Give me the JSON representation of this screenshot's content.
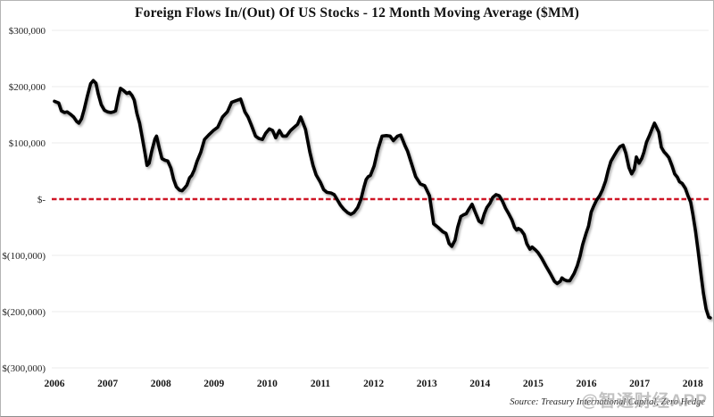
{
  "source_note": "Source: Treasury International Capital, Zero Hedge",
  "watermark": "@智通财经APP",
  "colors": {
    "line": "#000000",
    "zero_line": "#cf1626",
    "gridline": "#ebebeb",
    "text": "#161616"
  },
  "chart_data": {
    "type": "line",
    "title": "Foreign Flows In/(Out) Of US Stocks  - 12 Month Moving Average ($MM)",
    "xlabel": "",
    "ylabel": "",
    "ylim": [
      -300000,
      300000
    ],
    "xlim": [
      2006,
      2018.4
    ],
    "grid": "horizontal",
    "legend": "none",
    "y_ticks": [
      {
        "value": 300000,
        "label": "$300,000"
      },
      {
        "value": 200000,
        "label": "$200,000"
      },
      {
        "value": 100000,
        "label": "$100,000"
      },
      {
        "value": 0,
        "label": "$-"
      },
      {
        "value": -100000,
        "label": "$(100,000)"
      },
      {
        "value": -200000,
        "label": "$(200,000)"
      },
      {
        "value": -300000,
        "label": "$(300,000)"
      }
    ],
    "x_ticks": [
      2006,
      2007,
      2008,
      2009,
      2010,
      2011,
      2012,
      2013,
      2014,
      2015,
      2016,
      2017,
      2018
    ],
    "zero_line": {
      "value": 0,
      "style": "dashed",
      "color": "#cf1626"
    },
    "series": [
      {
        "name": "Foreign flows into/(out of) US stocks, 12-month moving average ($MM)",
        "color": "#000000",
        "points": [
          [
            2006.0,
            174000
          ],
          [
            2006.08,
            171000
          ],
          [
            2006.13,
            157000
          ],
          [
            2006.19,
            154000
          ],
          [
            2006.24,
            155000
          ],
          [
            2006.3,
            151000
          ],
          [
            2006.36,
            146000
          ],
          [
            2006.42,
            138000
          ],
          [
            2006.46,
            135000
          ],
          [
            2006.51,
            143000
          ],
          [
            2006.56,
            160000
          ],
          [
            2006.62,
            184000
          ],
          [
            2006.68,
            205000
          ],
          [
            2006.73,
            211000
          ],
          [
            2006.78,
            206000
          ],
          [
            2006.82,
            188000
          ],
          [
            2006.88,
            168000
          ],
          [
            2006.94,
            158000
          ],
          [
            2007.0,
            155000
          ],
          [
            2007.06,
            154000
          ],
          [
            2007.11,
            155000
          ],
          [
            2007.15,
            157000
          ],
          [
            2007.2,
            181000
          ],
          [
            2007.24,
            197000
          ],
          [
            2007.3,
            193000
          ],
          [
            2007.36,
            188000
          ],
          [
            2007.41,
            190000
          ],
          [
            2007.46,
            184000
          ],
          [
            2007.5,
            176000
          ],
          [
            2007.55,
            152000
          ],
          [
            2007.6,
            135000
          ],
          [
            2007.65,
            110000
          ],
          [
            2007.7,
            83000
          ],
          [
            2007.74,
            60000
          ],
          [
            2007.78,
            64000
          ],
          [
            2007.83,
            86000
          ],
          [
            2007.89,
            107000
          ],
          [
            2007.92,
            112000
          ],
          [
            2007.97,
            91000
          ],
          [
            2008.02,
            72000
          ],
          [
            2008.08,
            69000
          ],
          [
            2008.13,
            68000
          ],
          [
            2008.19,
            55000
          ],
          [
            2008.24,
            35000
          ],
          [
            2008.29,
            22000
          ],
          [
            2008.35,
            16000
          ],
          [
            2008.4,
            15000
          ],
          [
            2008.45,
            20000
          ],
          [
            2008.49,
            25000
          ],
          [
            2008.54,
            38000
          ],
          [
            2008.58,
            42000
          ],
          [
            2008.63,
            52000
          ],
          [
            2008.68,
            67000
          ],
          [
            2008.75,
            83000
          ],
          [
            2008.82,
            106000
          ],
          [
            2008.9,
            114000
          ],
          [
            2008.99,
            122000
          ],
          [
            2009.07,
            128000
          ],
          [
            2009.16,
            146000
          ],
          [
            2009.25,
            155000
          ],
          [
            2009.33,
            172000
          ],
          [
            2009.41,
            175000
          ],
          [
            2009.5,
            178000
          ],
          [
            2009.58,
            155000
          ],
          [
            2009.64,
            146000
          ],
          [
            2009.7,
            132000
          ],
          [
            2009.78,
            112000
          ],
          [
            2009.84,
            108000
          ],
          [
            2009.91,
            106000
          ],
          [
            2009.97,
            117000
          ],
          [
            2010.04,
            125000
          ],
          [
            2010.1,
            122000
          ],
          [
            2010.16,
            109000
          ],
          [
            2010.23,
            122000
          ],
          [
            2010.29,
            112000
          ],
          [
            2010.36,
            112000
          ],
          [
            2010.44,
            122000
          ],
          [
            2010.51,
            128000
          ],
          [
            2010.57,
            133000
          ],
          [
            2010.63,
            146000
          ],
          [
            2010.72,
            124000
          ],
          [
            2010.8,
            84000
          ],
          [
            2010.86,
            60000
          ],
          [
            2010.92,
            43000
          ],
          [
            2011.0,
            30000
          ],
          [
            2011.06,
            17000
          ],
          [
            2011.12,
            12000
          ],
          [
            2011.2,
            11000
          ],
          [
            2011.26,
            8000
          ],
          [
            2011.31,
            0
          ],
          [
            2011.38,
            -11000
          ],
          [
            2011.44,
            -18000
          ],
          [
            2011.51,
            -24000
          ],
          [
            2011.57,
            -27000
          ],
          [
            2011.63,
            -24000
          ],
          [
            2011.7,
            -15000
          ],
          [
            2011.76,
            -1000
          ],
          [
            2011.82,
            22000
          ],
          [
            2011.86,
            35000
          ],
          [
            2011.9,
            40000
          ],
          [
            2011.94,
            42000
          ],
          [
            2012.01,
            59000
          ],
          [
            2012.08,
            88000
          ],
          [
            2012.16,
            112000
          ],
          [
            2012.24,
            113000
          ],
          [
            2012.31,
            112000
          ],
          [
            2012.37,
            104000
          ],
          [
            2012.45,
            112000
          ],
          [
            2012.51,
            114000
          ],
          [
            2012.59,
            95000
          ],
          [
            2012.64,
            85000
          ],
          [
            2012.71,
            64000
          ],
          [
            2012.79,
            40000
          ],
          [
            2012.88,
            27000
          ],
          [
            2012.96,
            24000
          ],
          [
            2013.05,
            6000
          ],
          [
            2013.13,
            -44000
          ],
          [
            2013.21,
            -50000
          ],
          [
            2013.3,
            -58000
          ],
          [
            2013.36,
            -61000
          ],
          [
            2013.42,
            -79000
          ],
          [
            2013.47,
            -84000
          ],
          [
            2013.53,
            -73000
          ],
          [
            2013.58,
            -50000
          ],
          [
            2013.64,
            -31000
          ],
          [
            2013.69,
            -28000
          ],
          [
            2013.74,
            -26000
          ],
          [
            2013.79,
            -18000
          ],
          [
            2013.85,
            -9000
          ],
          [
            2013.91,
            -23000
          ],
          [
            2013.98,
            -39000
          ],
          [
            2014.03,
            -42000
          ],
          [
            2014.08,
            -26000
          ],
          [
            2014.13,
            -15000
          ],
          [
            2014.19,
            -7000
          ],
          [
            2014.24,
            3000
          ],
          [
            2014.3,
            8000
          ],
          [
            2014.36,
            6000
          ],
          [
            2014.42,
            -3000
          ],
          [
            2014.48,
            -16000
          ],
          [
            2014.54,
            -26000
          ],
          [
            2014.6,
            -37000
          ],
          [
            2014.65,
            -50000
          ],
          [
            2014.69,
            -55000
          ],
          [
            2014.72,
            -52000
          ],
          [
            2014.77,
            -55000
          ],
          [
            2014.83,
            -63000
          ],
          [
            2014.88,
            -79000
          ],
          [
            2014.94,
            -89000
          ],
          [
            2014.98,
            -85000
          ],
          [
            2015.04,
            -90000
          ],
          [
            2015.09,
            -95000
          ],
          [
            2015.16,
            -105000
          ],
          [
            2015.24,
            -119000
          ],
          [
            2015.32,
            -132000
          ],
          [
            2015.4,
            -146000
          ],
          [
            2015.45,
            -150000
          ],
          [
            2015.51,
            -146000
          ],
          [
            2015.54,
            -140000
          ],
          [
            2015.58,
            -143000
          ],
          [
            2015.63,
            -145000
          ],
          [
            2015.69,
            -145000
          ],
          [
            2015.77,
            -132000
          ],
          [
            2015.83,
            -118000
          ],
          [
            2015.88,
            -102000
          ],
          [
            2015.93,
            -81000
          ],
          [
            2015.99,
            -62000
          ],
          [
            2016.04,
            -48000
          ],
          [
            2016.09,
            -23000
          ],
          [
            2016.14,
            -12000
          ],
          [
            2016.19,
            -2000
          ],
          [
            2016.25,
            6000
          ],
          [
            2016.3,
            16000
          ],
          [
            2016.36,
            32000
          ],
          [
            2016.41,
            51000
          ],
          [
            2016.46,
            67000
          ],
          [
            2016.52,
            77000
          ],
          [
            2016.57,
            85000
          ],
          [
            2016.63,
            93000
          ],
          [
            2016.69,
            96000
          ],
          [
            2016.74,
            82000
          ],
          [
            2016.8,
            56000
          ],
          [
            2016.85,
            45000
          ],
          [
            2016.9,
            53000
          ],
          [
            2016.94,
            75000
          ],
          [
            2016.99,
            64000
          ],
          [
            2017.04,
            72000
          ],
          [
            2017.08,
            83000
          ],
          [
            2017.13,
            101000
          ],
          [
            2017.19,
            114000
          ],
          [
            2017.24,
            126000
          ],
          [
            2017.28,
            135000
          ],
          [
            2017.36,
            119000
          ],
          [
            2017.41,
            92000
          ],
          [
            2017.46,
            84000
          ],
          [
            2017.5,
            80000
          ],
          [
            2017.55,
            74000
          ],
          [
            2017.61,
            59000
          ],
          [
            2017.66,
            45000
          ],
          [
            2017.71,
            39000
          ],
          [
            2017.75,
            31000
          ],
          [
            2017.8,
            28000
          ],
          [
            2017.86,
            19000
          ],
          [
            2017.91,
            6000
          ],
          [
            2017.96,
            -5000
          ],
          [
            2018.0,
            -26000
          ],
          [
            2018.05,
            -56000
          ],
          [
            2018.1,
            -92000
          ],
          [
            2018.15,
            -130000
          ],
          [
            2018.2,
            -167000
          ],
          [
            2018.25,
            -195000
          ],
          [
            2018.3,
            -210000
          ],
          [
            2018.33,
            -211000
          ]
        ]
      }
    ]
  }
}
